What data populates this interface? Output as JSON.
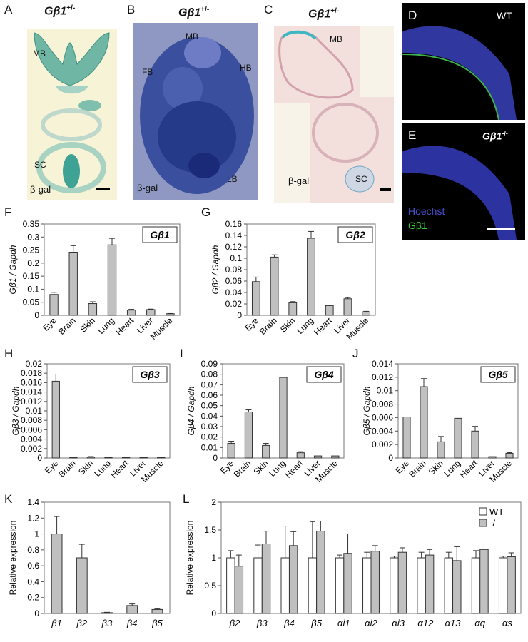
{
  "images": {
    "A": {
      "letter": "A",
      "genotype_base": "Gβ1",
      "genotype_sup": "+/-",
      "labels": [
        "MB",
        "SC"
      ],
      "stain": "β-gal"
    },
    "B": {
      "letter": "B",
      "genotype_base": "Gβ1",
      "genotype_sup": "+/-",
      "labels": [
        "MB",
        "FB",
        "HB",
        "LB"
      ],
      "stain": "β-gal"
    },
    "C": {
      "letter": "C",
      "genotype_base": "Gβ1",
      "genotype_sup": "+/-",
      "labels": [
        "MB",
        "SC"
      ],
      "stain": "β-gal"
    },
    "D": {
      "letter": "D",
      "tag": "WT"
    },
    "E": {
      "letter": "E",
      "tag_base": "Gβ1",
      "tag_sup": "-/-",
      "legend": [
        "Hoechst",
        "Gβ1"
      ],
      "legend_colors": [
        "#4a4fd0",
        "#33cc33"
      ]
    }
  },
  "chart_data": [
    {
      "panel": "F",
      "type": "bar",
      "title": "Gβ1",
      "ylabel": "Gβ1 / Gapdh",
      "categories": [
        "Eye",
        "Brain",
        "Skin",
        "Lung",
        "Heart",
        "Liver",
        "Muscle"
      ],
      "values": [
        0.08,
        0.242,
        0.045,
        0.27,
        0.02,
        0.022,
        0.006
      ],
      "errors": [
        0.008,
        0.025,
        0.007,
        0.025,
        0.003,
        0.002,
        0.001
      ],
      "ylim": [
        0,
        0.35
      ],
      "yticks": [
        "0",
        "0.05",
        "0.1",
        "0.15",
        "0.2",
        "0.25",
        "0.3",
        "0.35"
      ],
      "grid": false
    },
    {
      "panel": "G",
      "type": "bar",
      "title": "Gβ2",
      "ylabel": "Gβ2 / Gapdh",
      "categories": [
        "Eye",
        "Brain",
        "Skin",
        "Lung",
        "Heart",
        "Liver",
        "Muscle"
      ],
      "values": [
        0.059,
        0.102,
        0.022,
        0.135,
        0.017,
        0.029,
        0.006
      ],
      "errors": [
        0.008,
        0.004,
        0.002,
        0.012,
        0.001,
        0.002,
        0.001
      ],
      "ylim": [
        0,
        0.16
      ],
      "yticks": [
        "0",
        "0.02",
        "0.04",
        "0.06",
        "0.08",
        "0.1",
        "0.12",
        "0.14",
        "0.16"
      ],
      "grid": false
    },
    {
      "panel": "H",
      "type": "bar",
      "title": "Gβ3",
      "ylabel": "Gβ3 / Gapdh",
      "categories": [
        "Eye",
        "Brain",
        "Skin",
        "Lung",
        "Heart",
        "Liver",
        "Muscle"
      ],
      "values": [
        0.0163,
        0.0001,
        0.0002,
        0.0001,
        0.0001,
        0.0001,
        0.0001
      ],
      "errors": [
        0.0015,
        0.0001,
        0.0001,
        0.0001,
        0.0001,
        0.0001,
        0.0001
      ],
      "ylim": [
        0,
        0.02
      ],
      "yticks": [
        "0",
        "0.002",
        "0.004",
        "0.006",
        "0.008",
        "0.01",
        "0.012",
        "0.014",
        "0.016",
        "0.018",
        "0.02"
      ],
      "grid": false
    },
    {
      "panel": "I",
      "type": "bar",
      "title": "Gβ4",
      "ylabel": "Gβ4 / Gapdh",
      "categories": [
        "Eye",
        "Brain",
        "Skin",
        "Lung",
        "Heart",
        "Liver",
        "Muscle"
      ],
      "values": [
        0.014,
        0.044,
        0.012,
        0.077,
        0.005,
        0.002,
        0.002
      ],
      "errors": [
        0.002,
        0.002,
        0.002,
        0.0,
        0.001,
        0.0,
        0.0
      ],
      "ylim": [
        0,
        0.09
      ],
      "yticks": [
        "0",
        "0.01",
        "0.02",
        "0.03",
        "0.04",
        "0.05",
        "0.06",
        "0.07",
        "0.08",
        "0.09"
      ],
      "grid": false
    },
    {
      "panel": "J",
      "type": "bar",
      "title": "Gβ5",
      "ylabel": "Gβ5 / Gapdh",
      "categories": [
        "Eye",
        "Brain",
        "Skin",
        "Lung",
        "Heart",
        "Liver",
        "Muscle"
      ],
      "values": [
        0.0061,
        0.0106,
        0.0024,
        0.0059,
        0.004,
        0.0002,
        0.0007
      ],
      "errors": [
        0.0,
        0.0012,
        0.0008,
        0.0,
        0.0007,
        0.0,
        0.0001
      ],
      "ylim": [
        0,
        0.014
      ],
      "yticks": [
        "0",
        "0.002",
        "0.004",
        "0.006",
        "0.008",
        "0.01",
        "0.012",
        "0.014"
      ],
      "grid": false
    },
    {
      "panel": "K",
      "type": "bar",
      "title": "",
      "ylabel": "Relative expression",
      "categories": [
        "β1",
        "β2",
        "β3",
        "β4",
        "β5"
      ],
      "values": [
        1.0,
        0.7,
        0.01,
        0.1,
        0.05
      ],
      "errors": [
        0.22,
        0.17,
        0.005,
        0.02,
        0.01
      ],
      "ylim": [
        0,
        1.4
      ],
      "yticks": [
        "0",
        "0.2",
        "0.4",
        "0.6",
        "0.8",
        "1",
        "1.2",
        "1.4"
      ],
      "grid": false
    },
    {
      "panel": "L",
      "type": "bar",
      "title": "",
      "ylabel": "Relative expression",
      "categories": [
        "β2",
        "β3",
        "β4",
        "β5",
        "αi1",
        "αi2",
        "αi3",
        "α12",
        "α13",
        "αq",
        "αs"
      ],
      "series": [
        {
          "name": "WT",
          "values": [
            1.0,
            1.0,
            1.0,
            1.0,
            1.0,
            1.0,
            1.0,
            1.0,
            1.0,
            1.0,
            1.0
          ],
          "errors": [
            0.13,
            0.23,
            0.57,
            0.65,
            0.05,
            0.1,
            0.03,
            0.1,
            0.1,
            0.13,
            0.03
          ]
        },
        {
          "name": "-/-",
          "values": [
            0.85,
            1.25,
            1.22,
            1.48,
            1.08,
            1.12,
            1.1,
            1.05,
            0.95,
            1.15,
            1.02
          ],
          "errors": [
            0.2,
            0.23,
            0.25,
            0.18,
            0.35,
            0.1,
            0.08,
            0.1,
            0.25,
            0.1,
            0.07
          ]
        }
      ],
      "ylim": [
        0,
        2
      ],
      "yticks": [
        "0",
        "0.5",
        "1",
        "1.5",
        "2"
      ],
      "legend_position": "top-right",
      "grid": false
    }
  ]
}
